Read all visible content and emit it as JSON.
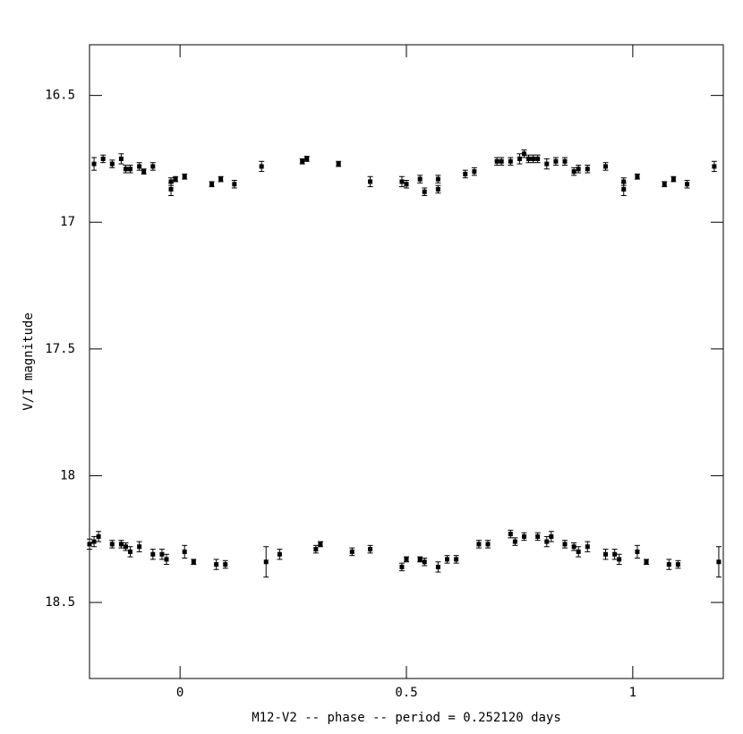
{
  "chart_data": {
    "type": "scatter",
    "xlabel": "M12-V2 -- phase -- period = 0.252120 days",
    "ylabel": "V/I magnitude",
    "xlim": [
      -0.2,
      1.2
    ],
    "ylim": [
      16.3,
      18.8
    ],
    "invert_y": true,
    "xticks": [
      0,
      0.5,
      1
    ],
    "yticks": [
      16.5,
      17,
      17.5,
      18,
      18.5
    ],
    "series": [
      {
        "color": "#000000",
        "x": [
          -0.19,
          -0.17,
          -0.15,
          -0.13,
          -0.12,
          -0.11,
          -0.09,
          -0.08,
          -0.06,
          -0.02,
          -0.02,
          -0.01,
          0.01,
          0.07,
          0.09,
          0.12,
          0.18,
          0.27,
          0.28,
          0.35,
          0.42,
          0.49,
          0.5,
          0.53,
          0.54,
          0.57,
          0.57,
          0.63,
          0.65,
          0.7,
          0.71,
          0.73,
          0.75,
          0.76,
          0.77,
          0.78,
          0.79,
          0.81,
          0.83,
          0.85,
          0.87,
          0.88,
          0.9,
          0.94,
          0.98,
          0.98,
          1.01,
          1.07,
          1.09,
          1.12,
          1.18
        ],
        "values": [
          16.77,
          16.75,
          16.77,
          16.75,
          16.79,
          16.79,
          16.78,
          16.8,
          16.78,
          16.87,
          16.84,
          16.83,
          16.82,
          16.85,
          16.83,
          16.85,
          16.78,
          16.76,
          16.75,
          16.77,
          16.84,
          16.84,
          16.85,
          16.83,
          16.88,
          16.83,
          16.87,
          16.81,
          16.8,
          16.76,
          16.76,
          16.76,
          16.75,
          16.73,
          16.75,
          16.75,
          16.75,
          16.77,
          16.76,
          16.76,
          16.8,
          16.79,
          16.79,
          16.78,
          16.87,
          16.84,
          16.82,
          16.85,
          16.83,
          16.85,
          16.78
        ],
        "errors": [
          0.025,
          0.015,
          0.015,
          0.02,
          0.015,
          0.015,
          0.015,
          0.01,
          0.015,
          0.025,
          0.015,
          0.01,
          0.01,
          0.01,
          0.01,
          0.015,
          0.02,
          0.01,
          0.01,
          0.01,
          0.02,
          0.02,
          0.015,
          0.015,
          0.015,
          0.015,
          0.015,
          0.015,
          0.015,
          0.015,
          0.015,
          0.015,
          0.02,
          0.015,
          0.015,
          0.015,
          0.015,
          0.02,
          0.015,
          0.015,
          0.015,
          0.015,
          0.015,
          0.015,
          0.025,
          0.015,
          0.01,
          0.01,
          0.01,
          0.015,
          0.02
        ]
      },
      {
        "color": "#000000",
        "x": [
          -0.2,
          -0.19,
          -0.18,
          -0.15,
          -0.13,
          -0.12,
          -0.11,
          -0.09,
          -0.06,
          -0.04,
          -0.03,
          0.01,
          0.03,
          0.08,
          0.1,
          0.19,
          0.22,
          0.3,
          0.31,
          0.38,
          0.42,
          0.49,
          0.5,
          0.53,
          0.54,
          0.57,
          0.59,
          0.61,
          0.66,
          0.68,
          0.73,
          0.74,
          0.76,
          0.79,
          0.81,
          0.82,
          0.85,
          0.87,
          0.88,
          0.9,
          0.94,
          0.96,
          0.97,
          1.01,
          1.03,
          1.08,
          1.1,
          1.19
        ],
        "values": [
          18.27,
          18.26,
          18.24,
          18.27,
          18.27,
          18.28,
          18.3,
          18.28,
          18.31,
          18.31,
          18.33,
          18.3,
          18.34,
          18.35,
          18.35,
          18.34,
          18.31,
          18.29,
          18.27,
          18.3,
          18.29,
          18.36,
          18.33,
          18.33,
          18.34,
          18.36,
          18.33,
          18.33,
          18.27,
          18.27,
          18.23,
          18.26,
          18.24,
          18.24,
          18.26,
          18.24,
          18.27,
          18.28,
          18.3,
          18.28,
          18.31,
          18.31,
          18.33,
          18.3,
          18.34,
          18.35,
          18.35,
          18.34
        ],
        "errors": [
          0.02,
          0.02,
          0.02,
          0.015,
          0.015,
          0.015,
          0.02,
          0.02,
          0.02,
          0.02,
          0.02,
          0.025,
          0.01,
          0.02,
          0.015,
          0.06,
          0.02,
          0.015,
          0.01,
          0.015,
          0.015,
          0.015,
          0.01,
          0.01,
          0.015,
          0.02,
          0.015,
          0.015,
          0.015,
          0.015,
          0.015,
          0.015,
          0.015,
          0.015,
          0.02,
          0.02,
          0.015,
          0.015,
          0.02,
          0.02,
          0.02,
          0.02,
          0.02,
          0.025,
          0.01,
          0.02,
          0.015,
          0.06
        ]
      }
    ]
  }
}
